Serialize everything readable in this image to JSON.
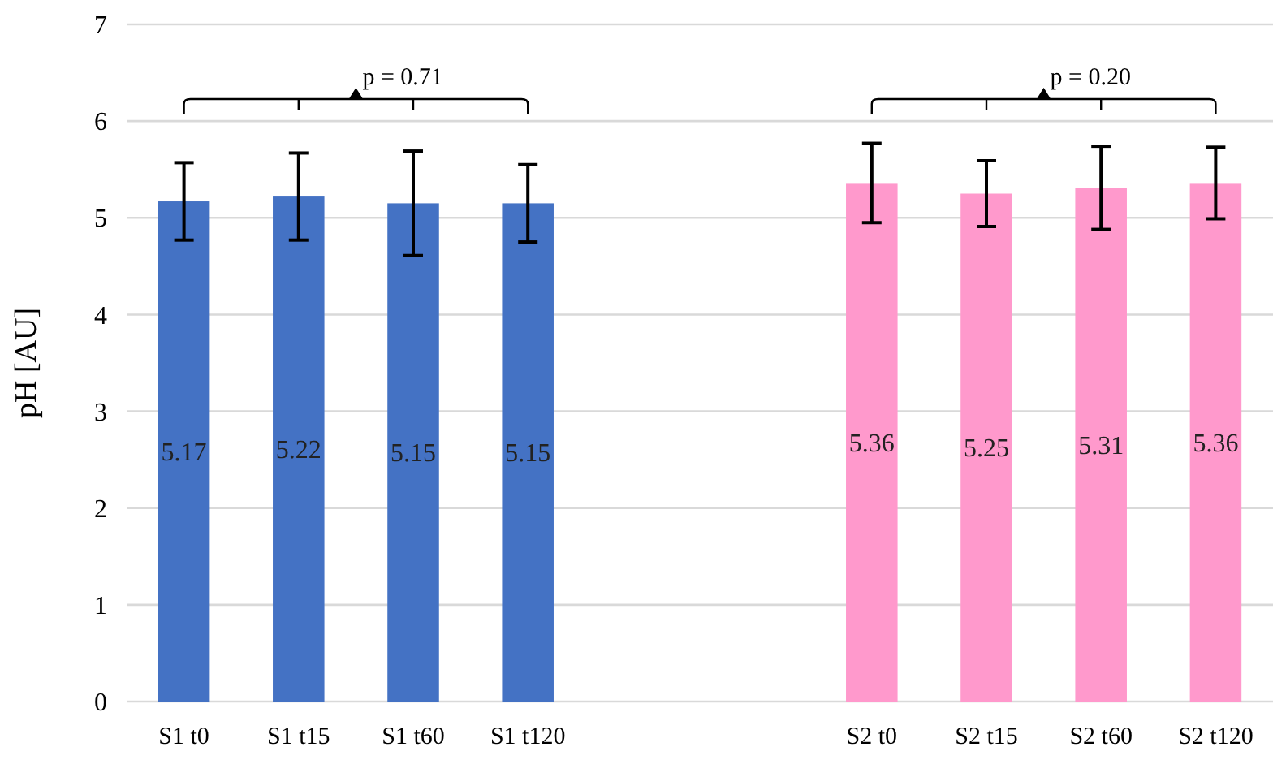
{
  "chart_data": {
    "type": "bar",
    "ylabel": "pH [AU]",
    "categories": [
      "S1 t0",
      "S1 t15",
      "S1 t60",
      "S1 t120",
      null,
      null,
      "S2 t0",
      "S2 t15",
      "S2 t60",
      "S2 t120"
    ],
    "values": [
      5.17,
      5.22,
      5.15,
      5.15,
      null,
      null,
      5.36,
      5.25,
      5.31,
      5.36
    ],
    "colors": [
      "#4472c4",
      "#4472c4",
      "#4472c4",
      "#4472c4",
      null,
      null,
      "#ff99cc",
      "#ff99cc",
      "#ff99cc",
      "#ff99cc"
    ],
    "errors": [
      0.4,
      0.45,
      0.54,
      0.4,
      null,
      null,
      0.41,
      0.34,
      0.43,
      0.37
    ],
    "data_labels": true,
    "ylim": [
      0,
      7
    ],
    "yticks": [
      0,
      1,
      2,
      3,
      4,
      5,
      6,
      7
    ],
    "grid": "y",
    "annotations": [
      "p = 0.71",
      "p = 0.20"
    ]
  }
}
